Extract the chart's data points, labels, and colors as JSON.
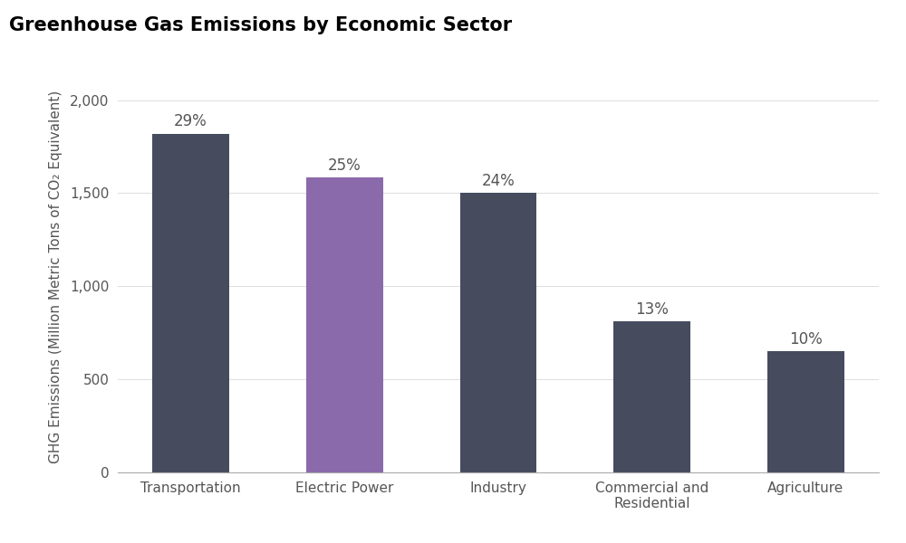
{
  "title": "Greenhouse Gas Emissions by Economic Sector",
  "categories": [
    "Transportation",
    "Electric Power",
    "Industry",
    "Commercial and\nResidential",
    "Agriculture"
  ],
  "values": [
    1820,
    1585,
    1500,
    810,
    650
  ],
  "percentages": [
    "29%",
    "25%",
    "24%",
    "13%",
    "10%"
  ],
  "bar_colors": [
    "#464c5e",
    "#8b6aab",
    "#464c5e",
    "#464c5e",
    "#464c5e"
  ],
  "ylabel": "GHG Emissions (Million Metric Tons of CO₂ Equivalent)",
  "ylim": [
    0,
    2100
  ],
  "yticks": [
    0,
    500,
    1000,
    1500,
    2000
  ],
  "ytick_labels": [
    "0",
    "500",
    "1,000",
    "1,500",
    "2,000"
  ],
  "background_color": "#ffffff",
  "title_fontsize": 15,
  "label_fontsize": 11,
  "tick_fontsize": 11,
  "pct_fontsize": 12
}
